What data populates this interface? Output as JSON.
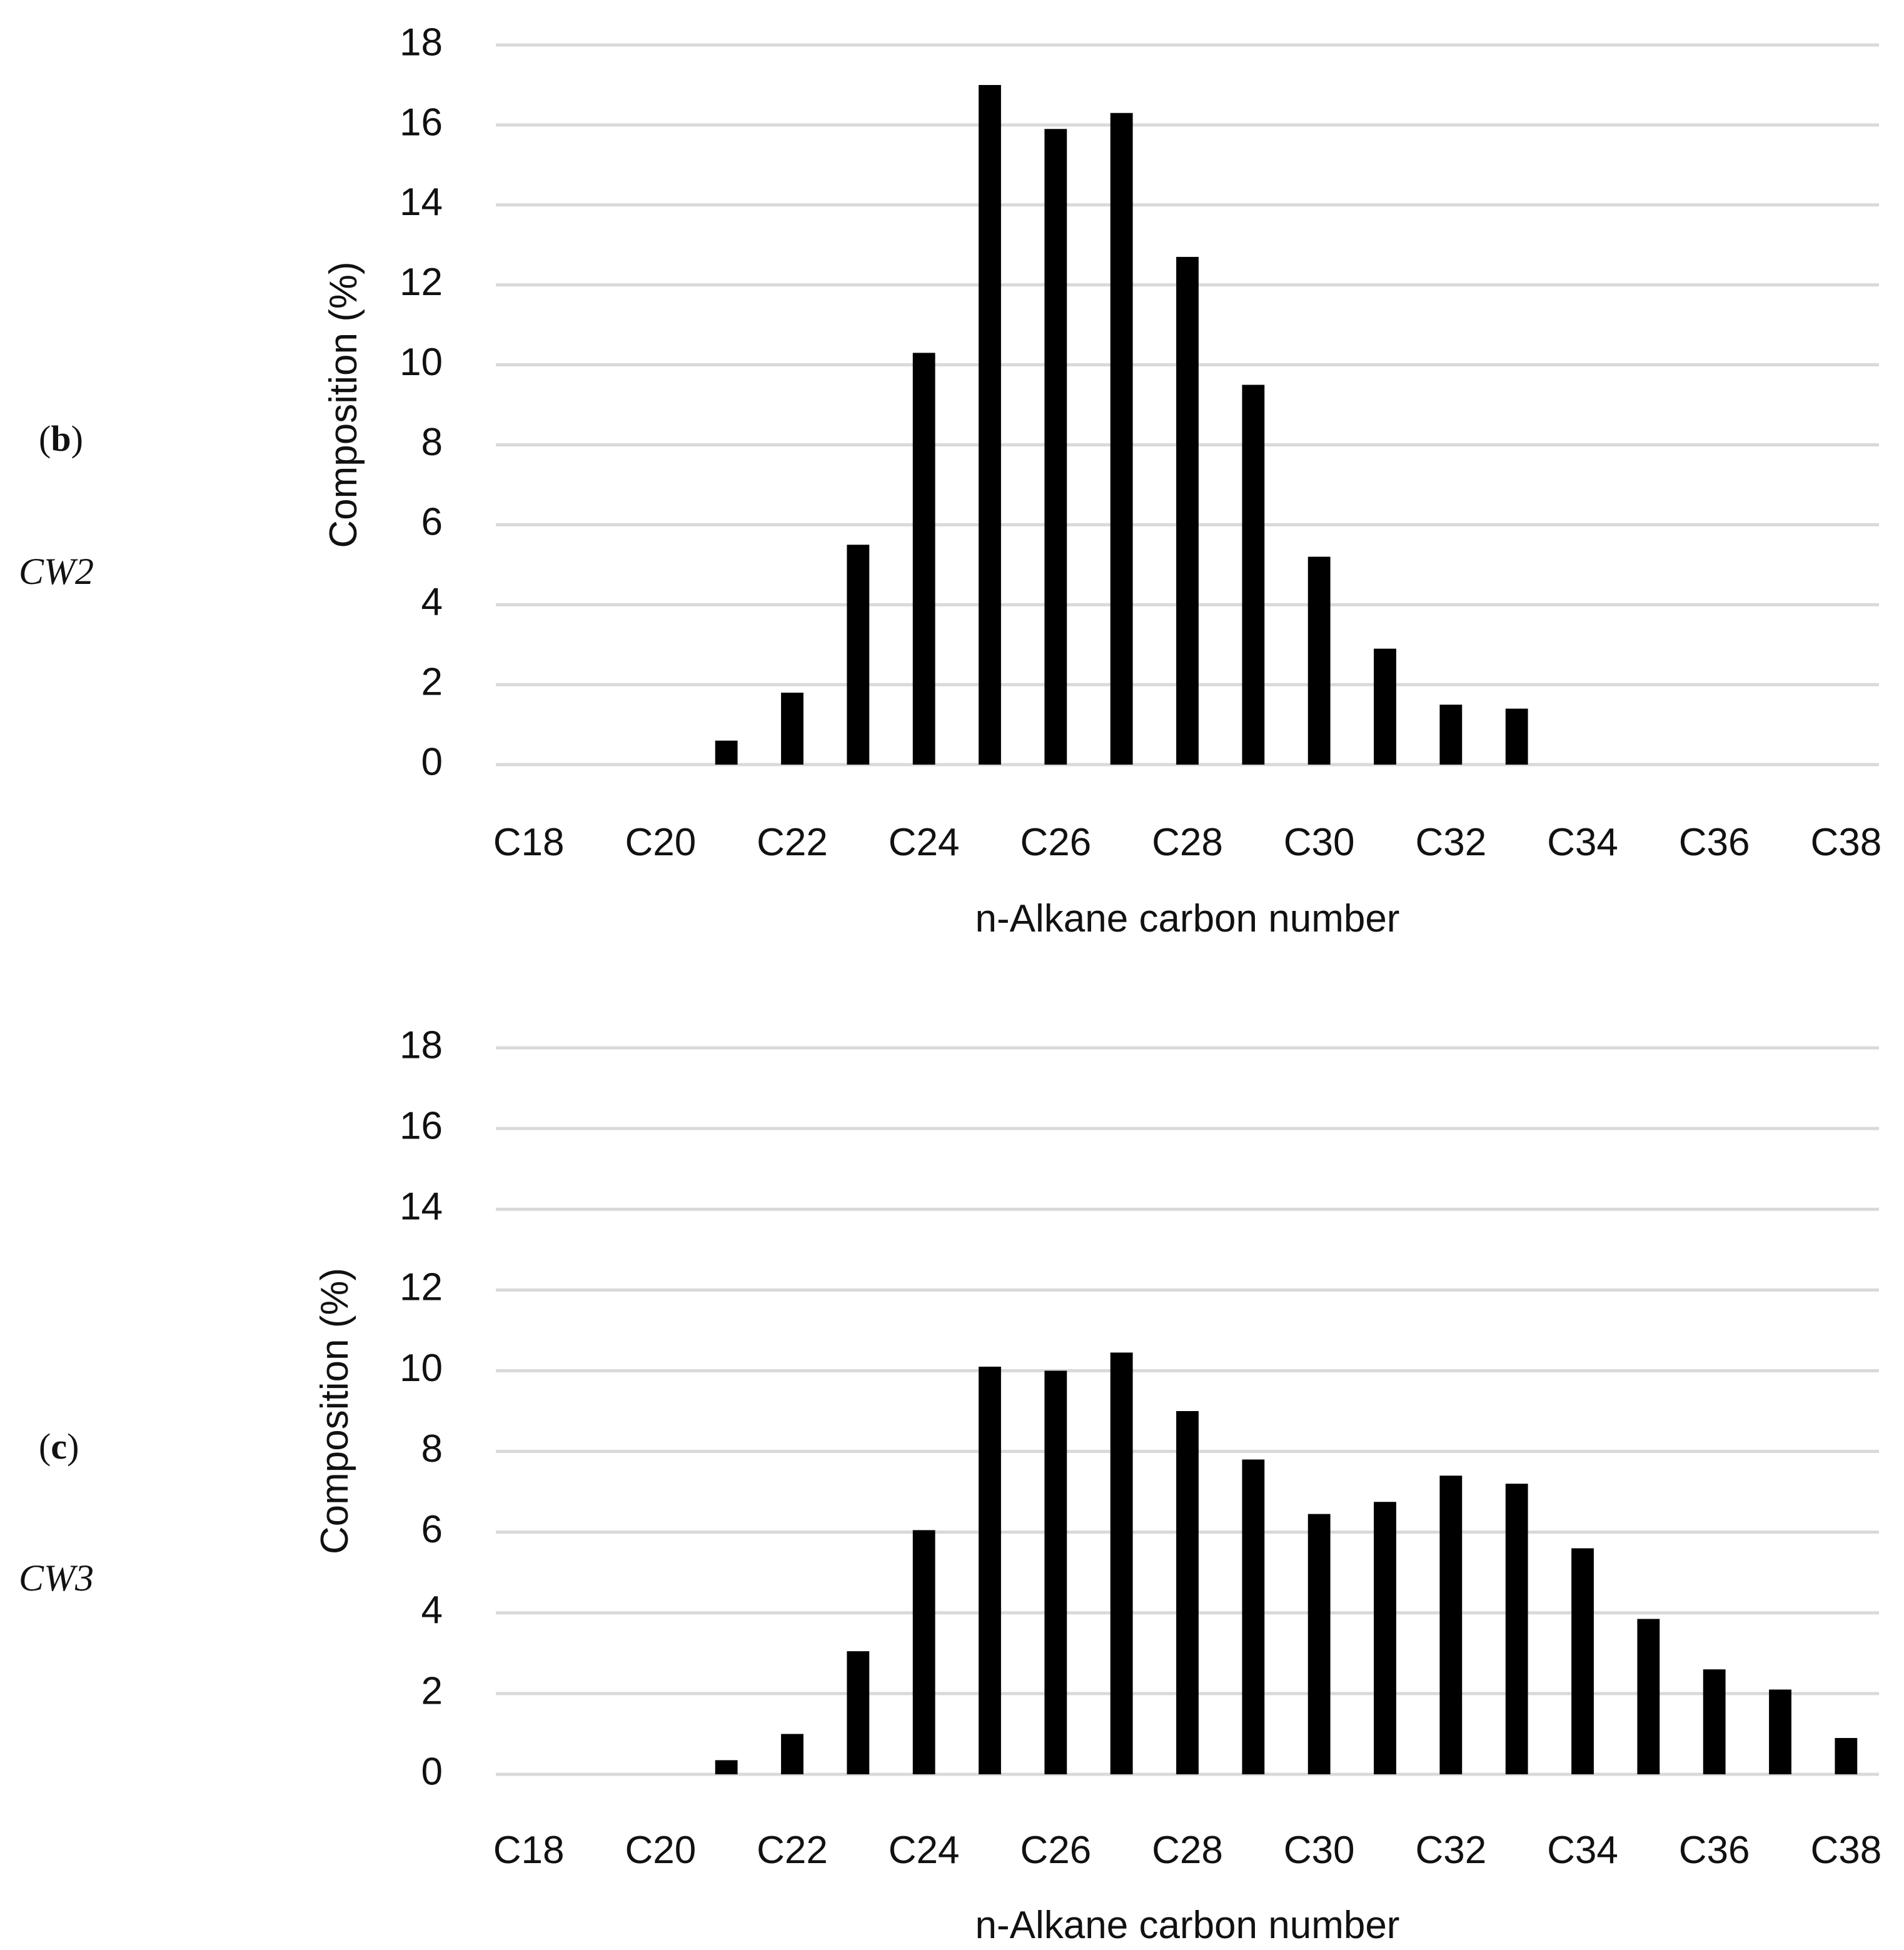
{
  "chart_data": [
    {
      "type": "bar",
      "panel_label": "b",
      "sample": "CW2",
      "xlabel": "n-Alkane carbon number",
      "ylabel": "Composition (%)",
      "ylim": [
        0,
        18
      ],
      "yticks": [
        "0",
        "2",
        "4",
        "6",
        "8",
        "10",
        "12",
        "14",
        "16",
        "18"
      ],
      "categories": [
        "C18",
        "C19",
        "C20",
        "C21",
        "C22",
        "C23",
        "C24",
        "C25",
        "C26",
        "C27",
        "C28",
        "C29",
        "C30",
        "C31",
        "C32",
        "C33",
        "C34",
        "C35",
        "C36",
        "C37",
        "C38"
      ],
      "xtick_labels": [
        "C18",
        "C20",
        "C22",
        "C24",
        "C26",
        "C28",
        "C30",
        "C32",
        "C34",
        "C36",
        "C38"
      ],
      "values": [
        0,
        0,
        0,
        0.6,
        1.8,
        5.5,
        10.3,
        17.0,
        15.9,
        16.3,
        12.7,
        9.5,
        5.2,
        2.9,
        1.5,
        1.4,
        0,
        0,
        0,
        0,
        0
      ],
      "grid": true,
      "legend": "none"
    },
    {
      "type": "bar",
      "panel_label": "c",
      "sample": "CW3",
      "xlabel": "n-Alkane carbon number",
      "ylabel": "Composition (%)",
      "ylim": [
        0,
        18
      ],
      "yticks": [
        "0",
        "2",
        "4",
        "6",
        "8",
        "10",
        "12",
        "14",
        "16",
        "18"
      ],
      "categories": [
        "C18",
        "C19",
        "C20",
        "C21",
        "C22",
        "C23",
        "C24",
        "C25",
        "C26",
        "C27",
        "C28",
        "C29",
        "C30",
        "C31",
        "C32",
        "C33",
        "C34",
        "C35",
        "C36",
        "C37",
        "C38"
      ],
      "xtick_labels": [
        "C18",
        "C20",
        "C22",
        "C24",
        "C26",
        "C28",
        "C30",
        "C32",
        "C34",
        "C36",
        "C38"
      ],
      "values": [
        0,
        0,
        0,
        0.35,
        1.0,
        3.05,
        6.05,
        10.1,
        10.0,
        10.45,
        9.0,
        7.8,
        6.45,
        6.75,
        7.4,
        7.2,
        5.6,
        3.85,
        2.6,
        2.1,
        0.9
      ],
      "grid": true,
      "legend": "none"
    }
  ]
}
